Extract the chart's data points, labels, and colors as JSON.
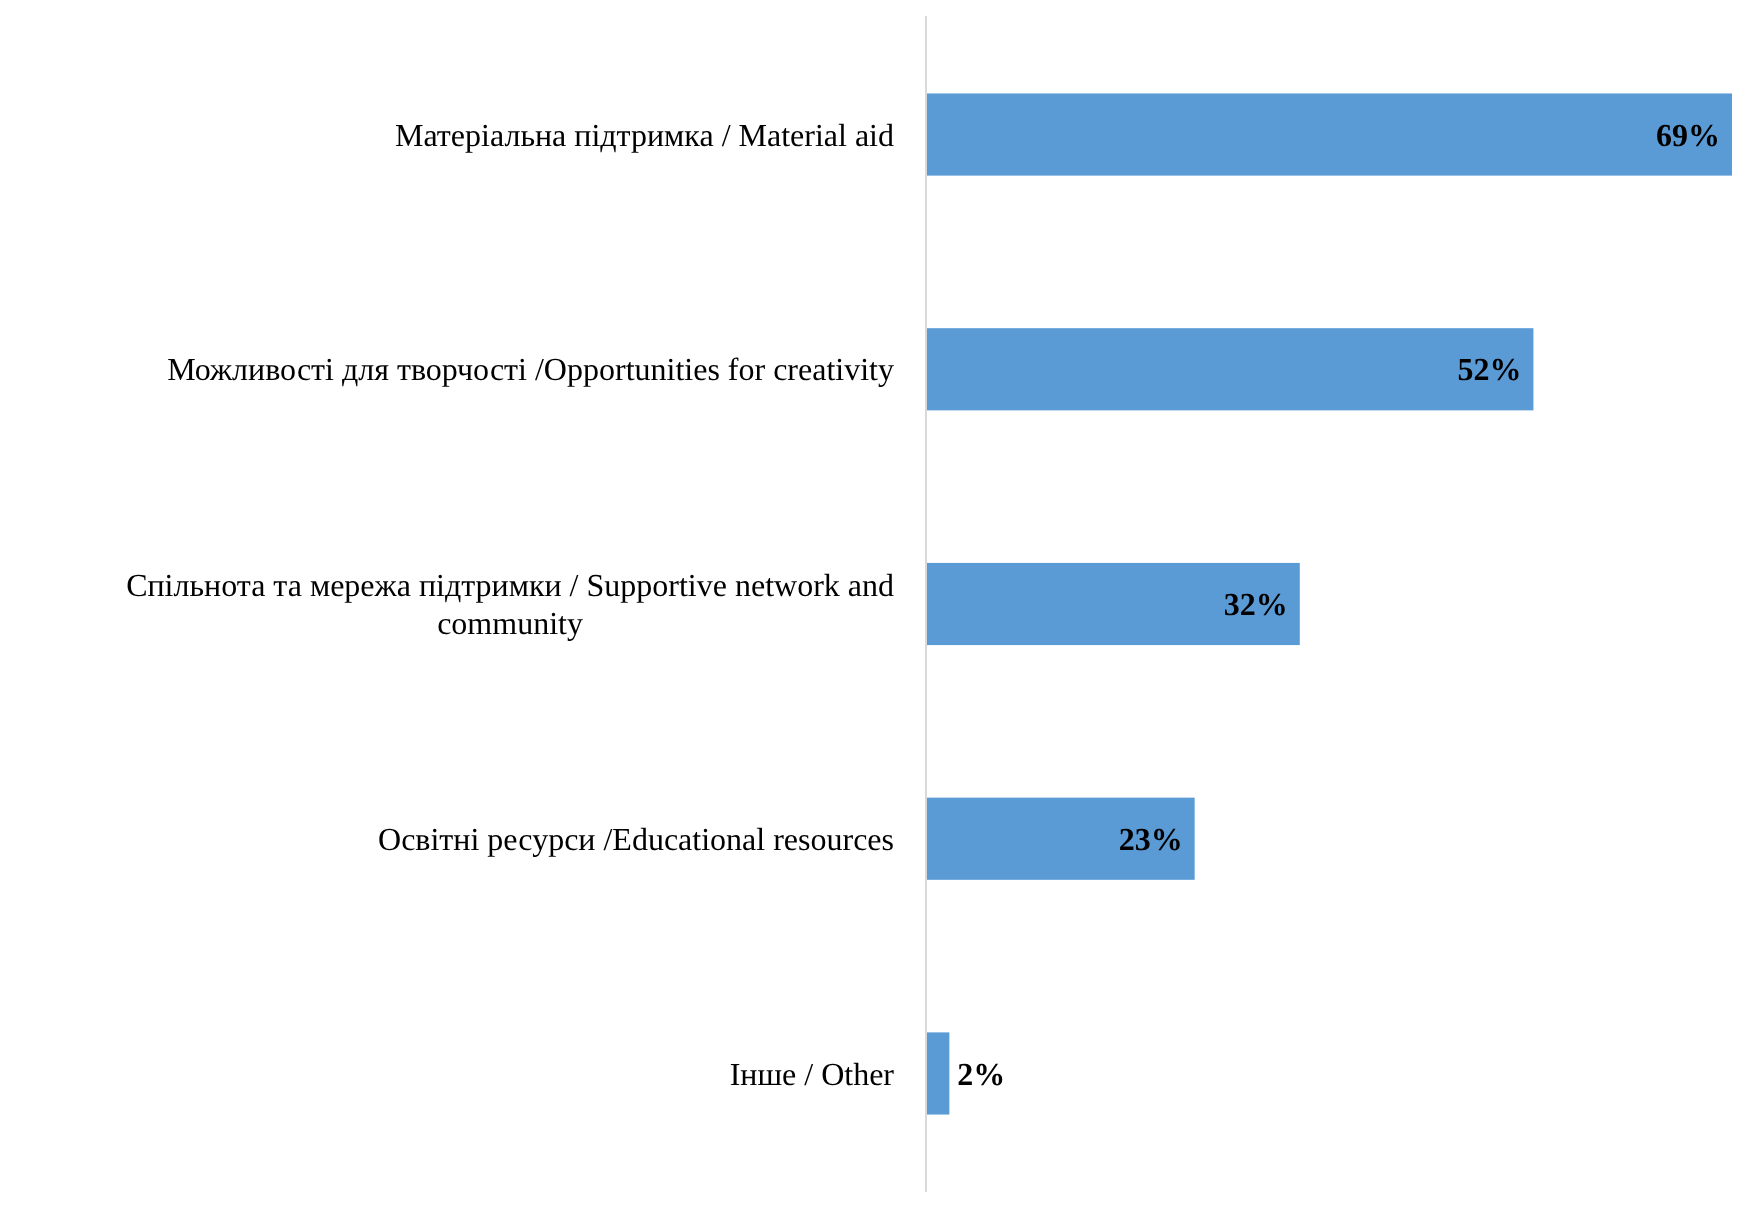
{
  "chart_data": {
    "type": "bar",
    "orientation": "horizontal",
    "categories": [
      "Матеріальна підтримка / Material aid",
      "Можливості для творчості /Opportunities for creativity",
      "Спільнота та мережа підтримки / Supportive network and community",
      "Освітні ресурси /Educational resources",
      "Інше / Other"
    ],
    "values": [
      69,
      52,
      32,
      23,
      2
    ],
    "value_labels": [
      "69%",
      "52%",
      "32%",
      "23%",
      "2%"
    ],
    "color": "#5b9bd5"
  }
}
